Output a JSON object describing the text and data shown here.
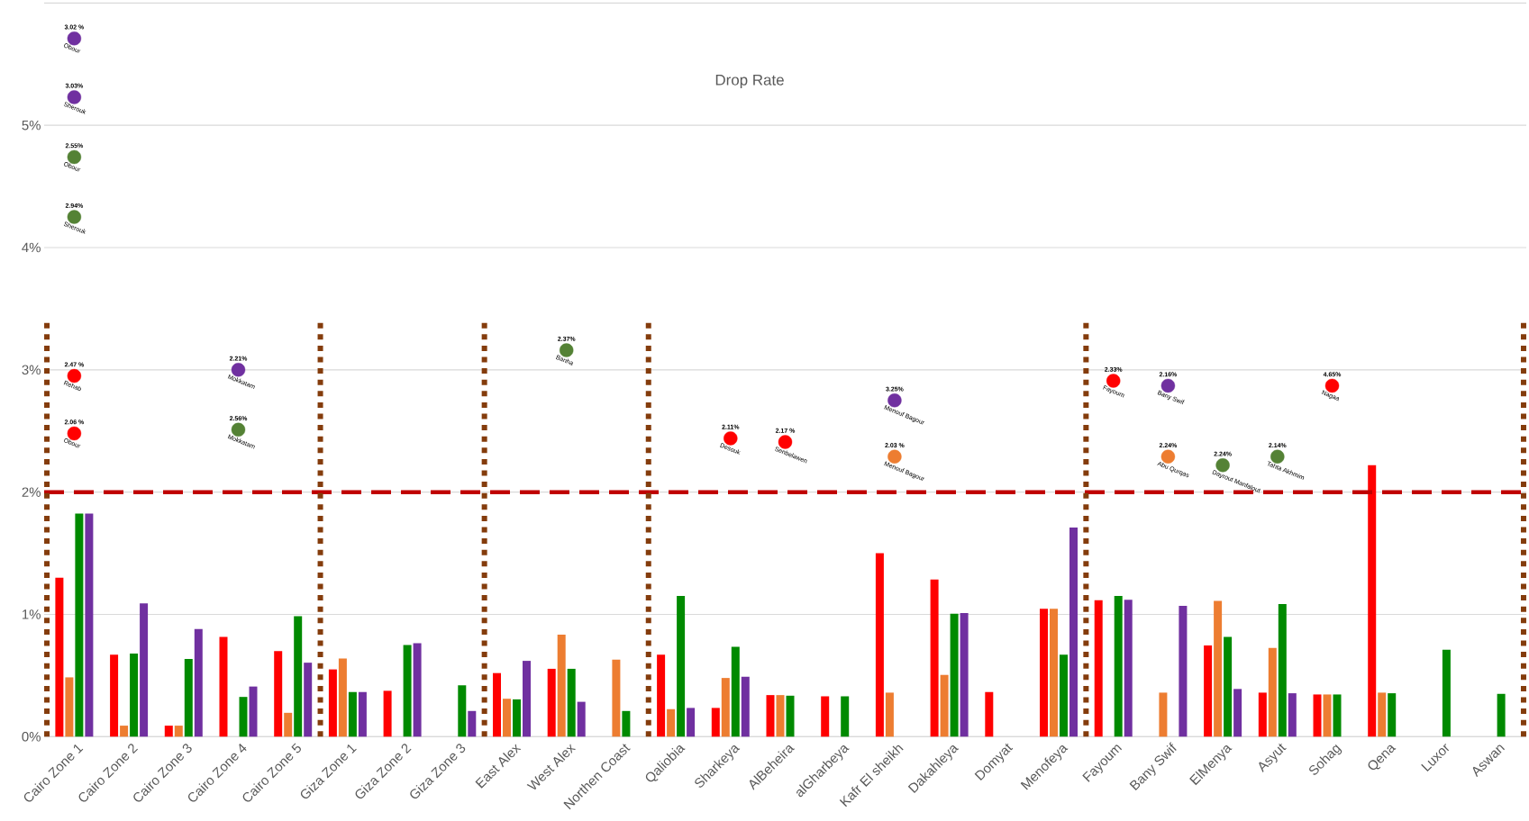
{
  "chart_data": {
    "type": "bar",
    "title": "Drop Rate",
    "categories": [
      "Cairo Zone 1",
      "Cairo Zone 2",
      "Cairo Zone 3",
      "Cairo Zone 4",
      "Cairo Zone 5",
      "Giza Zone 1",
      "Giza Zone 2",
      "Giza Zone 3",
      "East Alex",
      "West Alex",
      "Northen Coast",
      "Qaliobia",
      "Sharkeya",
      "AlBeheira",
      "alGharbeya",
      "Kafr El sheikh",
      "Dakahleya",
      "Domyat",
      "Menofeya",
      "Fayoum",
      "Bany Swif",
      "ElMenya",
      "Asyut",
      "Sohag",
      "Qena",
      "Luxor",
      "Aswan"
    ],
    "series": [
      {
        "color": "#ff0000",
        "values": [
          1.3,
          0.67,
          0.09,
          0.815,
          0.7,
          0.55,
          0.375,
          null,
          0.52,
          0.555,
          null,
          0.67,
          0.235,
          0.34,
          0.33,
          1.5,
          1.285,
          0.365,
          1.045,
          1.115,
          null,
          0.745,
          0.36,
          0.345,
          2.22,
          null,
          null
        ]
      },
      {
        "color": "#ed7d31",
        "values": [
          0.485,
          0.09,
          0.09,
          null,
          0.195,
          0.64,
          null,
          null,
          0.31,
          0.835,
          0.63,
          0.225,
          0.48,
          0.34,
          null,
          0.36,
          0.505,
          null,
          1.045,
          null,
          0.36,
          1.11,
          0.725,
          0.345,
          0.36,
          null,
          null
        ]
      },
      {
        "color": "#008a00",
        "values": [
          1.825,
          0.68,
          0.635,
          0.325,
          0.985,
          0.365,
          0.75,
          0.42,
          0.305,
          0.555,
          0.21,
          1.15,
          0.735,
          0.335,
          0.33,
          null,
          1.005,
          null,
          0.67,
          1.15,
          null,
          0.815,
          1.085,
          0.345,
          0.355,
          0.71,
          0.35
        ]
      },
      {
        "color": "#7030a0",
        "values": [
          1.825,
          1.09,
          0.88,
          0.41,
          0.605,
          0.365,
          0.765,
          0.21,
          0.62,
          0.285,
          null,
          0.235,
          0.49,
          null,
          null,
          null,
          1.01,
          null,
          1.71,
          1.12,
          1.07,
          0.39,
          0.355,
          null,
          null,
          null,
          null
        ]
      },
      {
        "type": "scatter",
        "marker": "circle",
        "color": "#ff0000",
        "x": [
          "Cairo Zone 1",
          "Cairo Zone 1",
          "Sharkeya",
          "AlBeheira",
          "Fayoum",
          "Sohag"
        ],
        "values": [
          2.95,
          2.48,
          2.44,
          2.41,
          2.91,
          2.87
        ]
      },
      {
        "type": "scatter",
        "marker": "circle",
        "color": "#ed7d31",
        "x": [
          "Kafr El sheikh",
          "Bany Swif"
        ],
        "values": [
          2.29,
          2.29
        ]
      },
      {
        "type": "scatter",
        "marker": "circle",
        "color": "#548235",
        "x": [
          "Cairo Zone 1",
          "Cairo Zone 1",
          "Cairo Zone 4",
          "West Alex",
          "ElMenya",
          "Asyut"
        ],
        "values": [
          4.74,
          4.25,
          2.51,
          3.16,
          2.22,
          2.29
        ]
      },
      {
        "type": "scatter",
        "marker": "circle",
        "color": "#7030a0",
        "x": [
          "Cairo Zone 1",
          "Cairo Zone 1",
          "Cairo Zone 4",
          "Kafr El sheikh",
          "Bany Swif"
        ],
        "values": [
          5.71,
          5.23,
          3.0,
          2.75,
          2.87
        ]
      }
    ],
    "annotations": [
      {
        "text": "2.47 %",
        "x": "Cairo Zone 1",
        "y": 2.95
      },
      {
        "text": "2.06 %",
        "x": "Cairo Zone 1",
        "y": 2.48
      },
      {
        "text": "2.11%",
        "x": "Sharkeya",
        "y": 2.44
      },
      {
        "text": "2.17 %",
        "x": "AlBeheira",
        "y": 2.41
      },
      {
        "text": "2.33%",
        "x": "Fayoum",
        "y": 2.91
      },
      {
        "text": "4.65%",
        "x": "Sohag",
        "y": 2.87
      },
      {
        "text": "2.03 %",
        "x": "Kafr El sheikh",
        "y": 2.29
      },
      {
        "text": "2.24%",
        "x": "Bany Swif",
        "y": 2.29
      },
      {
        "text": "2.55%",
        "x": "Cairo Zone 1",
        "y": 4.74
      },
      {
        "text": "2.94%",
        "x": "Cairo Zone 1",
        "y": 4.25
      },
      {
        "text": "2.56%",
        "x": "Cairo Zone 4",
        "y": 2.51
      },
      {
        "text": "2.37%",
        "x": "West Alex",
        "y": 3.16
      },
      {
        "text": "2.24%",
        "x": "ElMenya",
        "y": 2.22
      },
      {
        "text": "2.14%",
        "x": "Asyut",
        "y": 2.29
      },
      {
        "text": "3.02 %",
        "x": "Cairo Zone 1",
        "y": 5.71
      },
      {
        "text": "3.03%",
        "x": "Cairo Zone 1",
        "y": 5.23
      },
      {
        "text": "2.21%",
        "x": "Cairo Zone 4",
        "y": 3.0
      },
      {
        "text": "3.25%",
        "x": "Kafr El sheikh",
        "y": 2.75
      },
      {
        "text": "2.16%",
        "x": "Bany Swif",
        "y": 2.87
      },
      {
        "text": "Rehab",
        "x": "Cairo Zone 1",
        "y": 2.95
      },
      {
        "text": "Obour",
        "x": "Cairo Zone 1",
        "y": 2.48
      },
      {
        "text": "Desouk",
        "x": "Sharkeya",
        "y": 2.44
      },
      {
        "text": "Senbelawen",
        "x": "AlBeheira",
        "y": 2.41
      },
      {
        "text": "Fayoum",
        "x": "Fayoum",
        "y": 2.91
      },
      {
        "text": "Nagaa",
        "x": "Sohag",
        "y": 2.87
      },
      {
        "text": "Menouf Bagour",
        "x": "Kafr El sheikh",
        "y": 2.29
      },
      {
        "text": "Abu Qurqas",
        "x": "Bany Swif",
        "y": 2.29
      },
      {
        "text": "Obour",
        "x": "Cairo Zone 1",
        "y": 4.74
      },
      {
        "text": "Sherouk",
        "x": "Cairo Zone 1",
        "y": 4.25
      },
      {
        "text": "Mokkatam",
        "x": "Cairo Zone 4",
        "y": 2.51
      },
      {
        "text": "Banha",
        "x": "West Alex",
        "y": 3.16
      },
      {
        "text": "Dayrout Manfalout",
        "x": "ElMenya",
        "y": 2.22
      },
      {
        "text": "Tahta Akhmim",
        "x": "Asyut",
        "y": 2.29
      },
      {
        "text": "Obour",
        "x": "Cairo Zone 1",
        "y": 5.71
      },
      {
        "text": "Sherouk",
        "x": "Cairo Zone 1",
        "y": 5.23
      },
      {
        "text": "Mokkatam",
        "x": "Cairo Zone 4",
        "y": 3.0
      },
      {
        "text": "Menouf Bagour",
        "x": "Kafr El sheikh",
        "y": 2.75
      },
      {
        "text": "Bany Swif",
        "x": "Bany Swif",
        "y": 2.87
      }
    ],
    "ylim": [
      0,
      6
    ],
    "yticks": [
      {
        "value": 0,
        "label": "0%"
      },
      {
        "value": 1,
        "label": "1%"
      },
      {
        "value": 2,
        "label": "2%"
      },
      {
        "value": 3,
        "label": "3%"
      },
      {
        "value": 4,
        "label": "4%"
      },
      {
        "value": 5,
        "label": "5%"
      },
      {
        "value": 6,
        "label": null
      }
    ],
    "grid": "y",
    "ref_lines": [
      {
        "axis": "y",
        "value": 2,
        "color": "#c00000",
        "line_style": "dashed"
      }
    ]
  }
}
